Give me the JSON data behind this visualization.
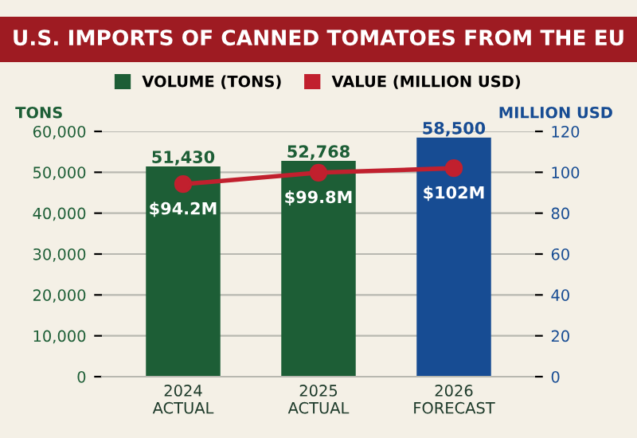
{
  "chart_data": {
    "type": "bar",
    "title": "U.S. IMPORTS OF CANNED TOMATOES FROM THE EU",
    "categories": [
      "2024\nACTUAL",
      "2025\nACTUAL",
      "2026\nFORECAST"
    ],
    "series": [
      {
        "name": "VOLUME (TONS)",
        "color": "#1d5e36",
        "colors": [
          "#1d5e36",
          "#1d5e36",
          "#174c93"
        ],
        "values": [
          51430,
          52768,
          58500
        ],
        "value_labels": [
          "51,430",
          "52,768",
          "58,500"
        ]
      },
      {
        "name": "VALUE (MILLION USD)",
        "type": "line",
        "axis": "y2",
        "color": "#c1202e",
        "values": [
          94.2,
          99.8,
          102
        ],
        "value_labels": [
          "$94.2M",
          "$99.8M",
          "$102M"
        ]
      }
    ],
    "ylabel": "TONS",
    "y2label": "MILLION USD",
    "ylim": [
      0,
      60000
    ],
    "yticks": [
      {
        "value": 0,
        "label": "0"
      },
      {
        "value": 10000,
        "label": "10,000"
      },
      {
        "value": 20000,
        "label": "20,000"
      },
      {
        "value": 30000,
        "label": "30,000"
      },
      {
        "value": 40000,
        "label": "40,000"
      },
      {
        "value": 50000,
        "label": "50,000"
      },
      {
        "value": 60000,
        "label": "60,000"
      }
    ],
    "y2lim": [
      0,
      120
    ],
    "y2ticks": [
      0,
      20,
      40,
      60,
      80,
      100,
      120
    ],
    "grid": "y",
    "legend": "top",
    "marker": "circle"
  }
}
